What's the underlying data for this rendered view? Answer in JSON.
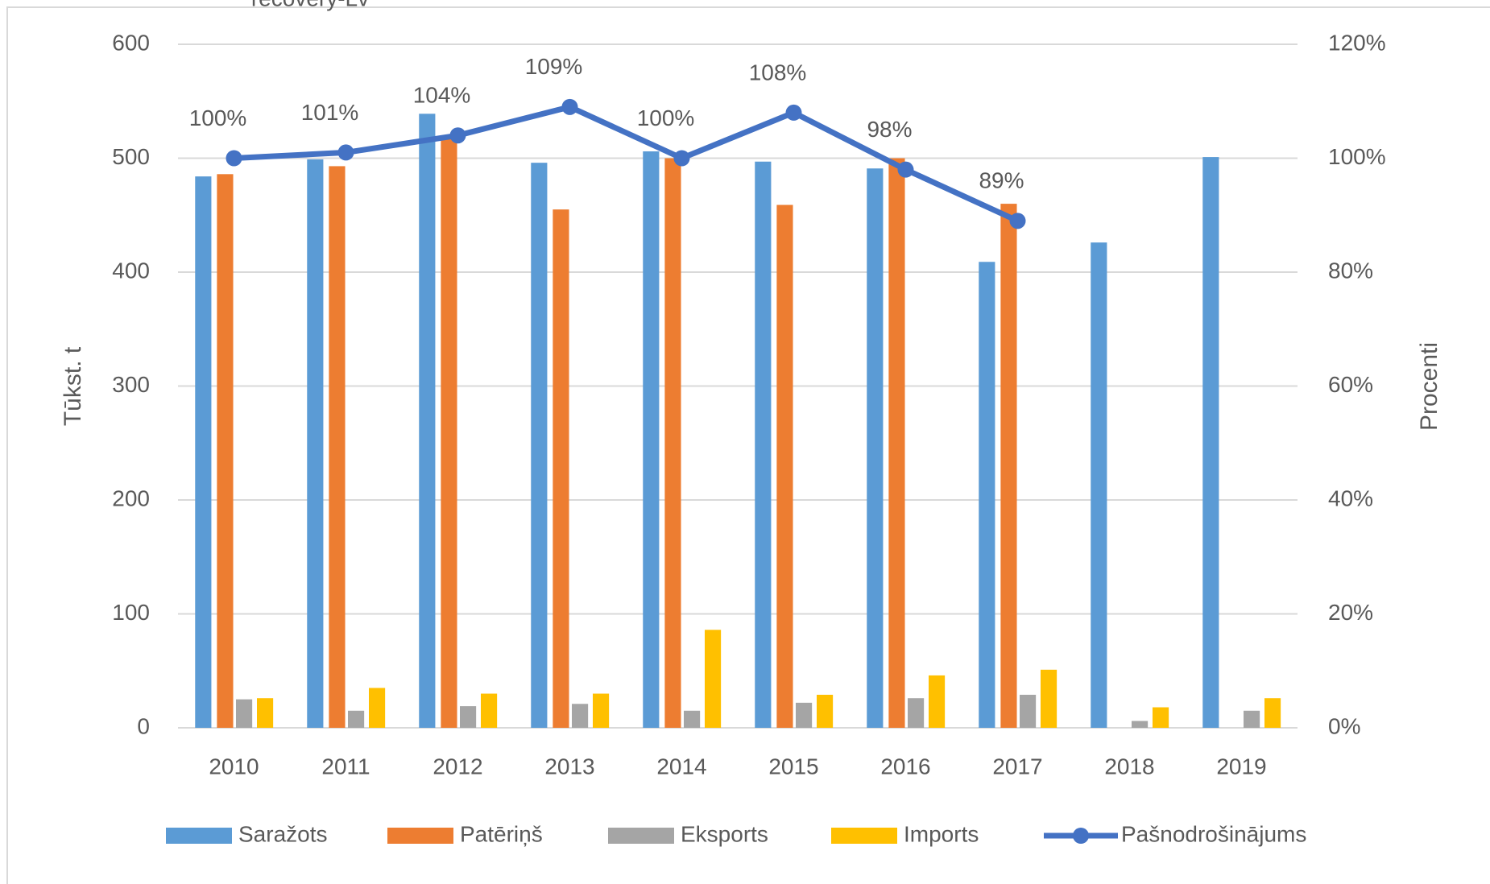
{
  "chart_data": {
    "type": "bar",
    "annotation": "recovery-Lv",
    "ylabel": "Tūkst. t",
    "y2label": "Procenti",
    "categories": [
      "2010",
      "2011",
      "2012",
      "2013",
      "2014",
      "2015",
      "2016",
      "2017",
      "2018",
      "2019"
    ],
    "series": [
      {
        "name": "Saražots",
        "color": "#5b9bd5",
        "values": [
          484,
          499,
          539,
          496,
          506,
          497,
          491,
          409,
          426,
          501
        ]
      },
      {
        "name": "Patēriņš",
        "color": "#ed7d31",
        "values": [
          486,
          493,
          520,
          455,
          500,
          459,
          500,
          460,
          null,
          null
        ]
      },
      {
        "name": "Eksports",
        "color": "#a5a5a5",
        "values": [
          25,
          15,
          19,
          21,
          15,
          22,
          26,
          29,
          6,
          15
        ]
      },
      {
        "name": "Imports",
        "color": "#ffc000",
        "values": [
          26,
          35,
          30,
          30,
          86,
          29,
          46,
          51,
          18,
          26
        ]
      },
      {
        "name": "Pašnodrošinājums",
        "color": "#4472c4",
        "type": "line",
        "axis": "y2",
        "values": [
          100,
          101,
          104,
          109,
          100,
          108,
          98,
          89,
          null,
          null
        ],
        "value_labels": [
          "100%",
          "101%",
          "104%",
          "109%",
          "100%",
          "108%",
          "98%",
          "89%",
          null,
          null
        ]
      }
    ],
    "ylim": [
      0,
      600
    ],
    "yticks": [
      0,
      100,
      200,
      300,
      400,
      500,
      600
    ],
    "y2lim": [
      0,
      120
    ],
    "y2ticks": [
      {
        "value": 0,
        "label": "0%"
      },
      {
        "value": 20,
        "label": "20%"
      },
      {
        "value": 40,
        "label": "40%"
      },
      {
        "value": 60,
        "label": "60%"
      },
      {
        "value": 80,
        "label": "80%"
      },
      {
        "value": 100,
        "label": "100%"
      },
      {
        "value": 120,
        "label": "120%"
      }
    ],
    "grid": true,
    "legend": "bottom"
  }
}
